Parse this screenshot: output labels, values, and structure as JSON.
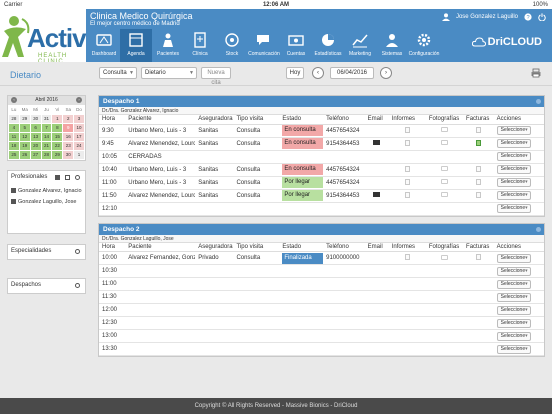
{
  "status_bar": {
    "carrier": "Carrier",
    "time": "12:06 AM",
    "battery": "100%"
  },
  "header": {
    "logo_word": "Active",
    "logo_sub": "HEALTH CLINIC",
    "clinic_name": "Clinica Medico Quirúrgica",
    "clinic_sub": "El mejor centro médico de Madrid",
    "user_name": "Jose Gonzalez Laguillo",
    "brand": "DriCLOUD",
    "nav": [
      {
        "label": "Dashboard",
        "icon": "dashboard-icon"
      },
      {
        "label": "Agenda",
        "icon": "calendar-icon"
      },
      {
        "label": "Pacientes",
        "icon": "patients-icon"
      },
      {
        "label": "Clínica",
        "icon": "clinic-icon"
      },
      {
        "label": "Stock",
        "icon": "stock-icon"
      },
      {
        "label": "Comunicación",
        "icon": "communication-icon"
      },
      {
        "label": "Cuentas",
        "icon": "accounts-icon"
      },
      {
        "label": "Estadísticas",
        "icon": "statistics-icon"
      },
      {
        "label": "Marketing",
        "icon": "marketing-icon"
      },
      {
        "label": "Sistemas",
        "icon": "systems-icon"
      },
      {
        "label": "Configuración",
        "icon": "settings-icon"
      }
    ]
  },
  "toolbar": {
    "title": "Dietario",
    "filter1": "Consulta",
    "filter2": "Dietario",
    "new_cita": "Nueva cita",
    "today": "Hoy",
    "date": "06/04/2016"
  },
  "calendar": {
    "month": "Abril 2016",
    "day_headers": [
      "Lu",
      "Ma",
      "Mi",
      "Ju",
      "Vi",
      "Sa",
      "Do"
    ],
    "weeks": [
      [
        [
          "28",
          "w"
        ],
        [
          "29",
          "w"
        ],
        [
          "30",
          "w"
        ],
        [
          "31",
          "w"
        ],
        [
          "1",
          "p"
        ],
        [
          "2",
          "p"
        ],
        [
          "3",
          "p"
        ]
      ],
      [
        [
          "4",
          "g"
        ],
        [
          "5",
          "g"
        ],
        [
          "6",
          "g"
        ],
        [
          "7",
          "g"
        ],
        [
          "8",
          "g"
        ],
        [
          "9",
          "today"
        ],
        [
          "10",
          "p"
        ]
      ],
      [
        [
          "11",
          "g"
        ],
        [
          "12",
          "g"
        ],
        [
          "13",
          "g"
        ],
        [
          "14",
          "g"
        ],
        [
          "15",
          "g"
        ],
        [
          "16",
          "p"
        ],
        [
          "17",
          "p"
        ]
      ],
      [
        [
          "18",
          "g"
        ],
        [
          "19",
          "g"
        ],
        [
          "20",
          "g"
        ],
        [
          "21",
          "g"
        ],
        [
          "22",
          "g"
        ],
        [
          "23",
          "p"
        ],
        [
          "24",
          "p"
        ]
      ],
      [
        [
          "25",
          "g"
        ],
        [
          "26",
          "g"
        ],
        [
          "27",
          "g"
        ],
        [
          "28",
          "g"
        ],
        [
          "29",
          "g"
        ],
        [
          "30",
          "p"
        ],
        [
          "1",
          "w"
        ]
      ]
    ]
  },
  "sidebar": {
    "profesionales_label": "Profesionales",
    "professionals": [
      "Gonzalez Alvarez, Ignacio",
      "Gonzalez Laguillo, Jose"
    ],
    "especialidades_label": "Especialidades",
    "despachos_label": "Despachos"
  },
  "columns": [
    "Hora",
    "Paciente",
    "Aseguradora",
    "Tipo visita",
    "Estado",
    "Teléfono",
    "Email",
    "Informes",
    "Fotografías",
    "Facturas",
    "Acciones"
  ],
  "action_label": "Seleccione",
  "despachos": [
    {
      "title": "Despacho 1",
      "doctor": "Dr./Dra. Gonzalez Alvarez, Ignacio",
      "rows": [
        {
          "hora": "9:30",
          "paciente": "Urbano Mero, Luis - 3",
          "aseg": "Sanitas",
          "tipo": "Consulta",
          "estado": "En consulta",
          "color": "red",
          "tel": "4457654324",
          "mail": false,
          "factura": false
        },
        {
          "hora": "9:45",
          "paciente": "Alvarez Menendez, Lourdes ...",
          "aseg": "Sanitas",
          "tipo": "Consulta",
          "estado": "En consulta",
          "color": "red",
          "tel": "9154364453",
          "mail": true,
          "factura": true
        },
        {
          "hora": "10:05",
          "paciente": "CERRADAS",
          "aseg": "",
          "tipo": "",
          "estado": "",
          "color": "",
          "tel": "",
          "mail": false,
          "factura": false,
          "closed": true
        },
        {
          "hora": "10:40",
          "paciente": "Urbano Mero, Luis - 3",
          "aseg": "Sanitas",
          "tipo": "Consulta",
          "estado": "En consulta",
          "color": "red",
          "tel": "4457654324",
          "mail": false,
          "factura": false
        },
        {
          "hora": "11:00",
          "paciente": "Urbano Mero, Luis - 3",
          "aseg": "Sanitas",
          "tipo": "Consulta",
          "estado": "Por llegar",
          "color": "green",
          "tel": "4457654324",
          "mail": false,
          "factura": false
        },
        {
          "hora": "11:50",
          "paciente": "Alvarez Menendez, Lourdes ...",
          "aseg": "Sanitas",
          "tipo": "Consulta",
          "estado": "Por llegar",
          "color": "green",
          "tel": "9154364453",
          "mail": true,
          "factura": false
        },
        {
          "hora": "12:10",
          "paciente": "",
          "aseg": "",
          "tipo": "",
          "estado": "",
          "color": "",
          "tel": "",
          "mail": false,
          "factura": false,
          "empty": true
        }
      ]
    },
    {
      "title": "Despacho 2",
      "doctor": "Dr./Dra. Gonzalez Laguillo, Jose",
      "rows": [
        {
          "hora": "10:00",
          "paciente": "Alvarez Fernandez, Gonzalo...",
          "aseg": "Privado",
          "tipo": "Consulta",
          "estado": "Finalizada",
          "color": "blue",
          "tel": "9100000000",
          "mail": false,
          "factura": false
        },
        {
          "hora": "10:30",
          "empty": true
        },
        {
          "hora": "11:00",
          "empty": true
        },
        {
          "hora": "11:30",
          "empty": true
        },
        {
          "hora": "12:00",
          "empty": true
        },
        {
          "hora": "12:30",
          "empty": true
        },
        {
          "hora": "13:00",
          "empty": true
        },
        {
          "hora": "13:30",
          "empty": true
        }
      ]
    }
  ],
  "footer": "Copyright © All Rights Reserved - Massive Bionics - DriCloud"
}
